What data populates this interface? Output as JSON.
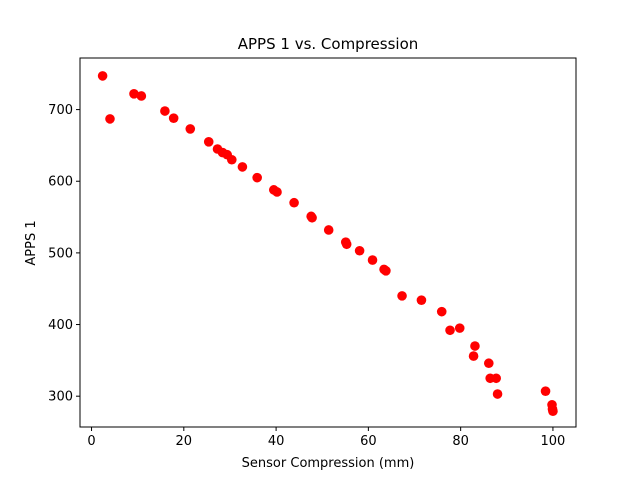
{
  "chart_data": {
    "type": "scatter",
    "title": "APPS 1 vs. Compression",
    "xlabel": "Sensor Compression (mm)",
    "ylabel": "APPS 1",
    "xlim": [
      -2.5,
      105
    ],
    "ylim": [
      257,
      772
    ],
    "xticks": [
      0,
      20,
      40,
      60,
      80,
      100
    ],
    "yticks": [
      300,
      400,
      500,
      600,
      700
    ],
    "grid": false,
    "marker_color": "#ff0000",
    "series": [
      {
        "color": "#ff0000",
        "x": [
          2.4,
          4.0,
          9.2,
          10.8,
          15.9,
          17.8,
          21.4,
          25.4,
          27.3,
          28.4,
          29.4,
          30.4,
          32.7,
          35.9,
          39.5,
          40.2,
          43.9,
          47.6,
          47.8,
          51.4,
          55.1,
          55.3,
          58.1,
          60.9,
          63.4,
          63.8,
          67.3,
          71.5,
          75.9,
          77.7,
          79.8,
          82.8,
          83.1,
          86.1,
          86.4,
          87.7,
          88.0,
          98.4,
          99.8,
          99.9,
          100.0
        ],
        "y": [
          747,
          687,
          722,
          719,
          698,
          688,
          673,
          655,
          645,
          640,
          637,
          630,
          620,
          605,
          588,
          585,
          570,
          551,
          549,
          532,
          515,
          512,
          503,
          490,
          477,
          475,
          440,
          434,
          418,
          392,
          395,
          356,
          370,
          346,
          325,
          325,
          303,
          307,
          288,
          282,
          279
        ]
      }
    ]
  }
}
